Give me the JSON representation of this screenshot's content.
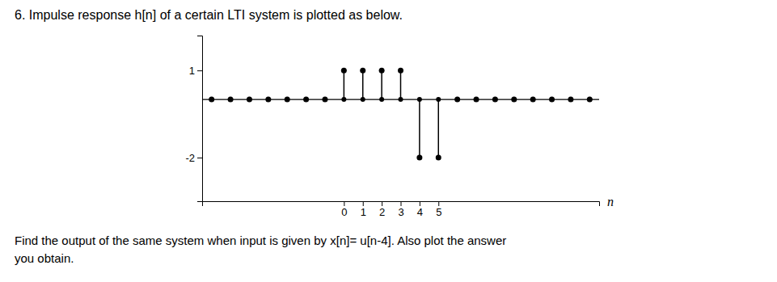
{
  "chart_data": {
    "type": "stem",
    "title": "6. Impulse response h[n] of a certain LTI system is plotted as below.",
    "annotations": [
      "Find the output of the same system when input is given by x[n]= u[n-4]. Also plot the answer",
      "you obtain."
    ],
    "x_label": "n",
    "x": [
      -7,
      -6,
      -5,
      -4,
      -3,
      -2,
      -1,
      0,
      1,
      2,
      3,
      4,
      5,
      6,
      7,
      8,
      9,
      10,
      11,
      12,
      13
    ],
    "values": [
      0,
      0,
      0,
      0,
      0,
      0,
      0,
      1,
      1,
      1,
      1,
      -2,
      -2,
      0,
      0,
      0,
      0,
      0,
      0,
      0,
      0
    ],
    "color": "#000000",
    "xlim": [
      -7.5,
      13.5
    ],
    "ylim": [
      -3.5,
      2.2
    ],
    "xticks": [
      0,
      1,
      2,
      3,
      4,
      5
    ],
    "yticks": [
      -2,
      1
    ],
    "grid": false
  }
}
